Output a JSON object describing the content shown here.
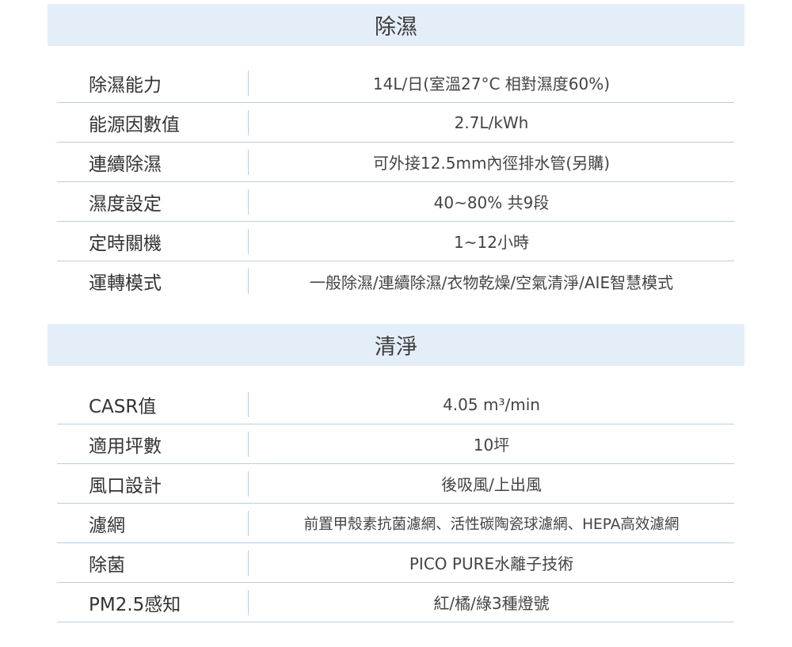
{
  "sections": [
    {
      "title": "除濕",
      "rows": [
        {
          "label": "除濕能力",
          "value": "14L/日(室溫27°C 相對濕度60%)"
        },
        {
          "label": "能源因數值",
          "value": "2.7L/kWh"
        },
        {
          "label": "連續除濕",
          "value": "可外接12.5mm內徑排水管(另購)"
        },
        {
          "label": "濕度設定",
          "value": "40~80% 共9段"
        },
        {
          "label": "定時關機",
          "value": "1~12小時"
        },
        {
          "label": "運轉模式",
          "value": "一般除濕/連續除濕/衣物乾燥/空氣清淨/AIE智慧模式"
        }
      ]
    },
    {
      "title": "清淨",
      "rows": [
        {
          "label": "CASR值",
          "value": "4.05 m³/min"
        },
        {
          "label": "適用坪數",
          "value": "10坪"
        },
        {
          "label": "風口設計",
          "value": "後吸風/上出風"
        },
        {
          "label": "濾網",
          "value": "前置甲殼素抗菌濾網、活性碳陶瓷球濾網、HEPA高效濾網"
        },
        {
          "label": "除菌",
          "value": "PICO PURE水離子技術"
        },
        {
          "label": "PM2.5感知",
          "value": "紅/橘/綠3種燈號"
        }
      ]
    }
  ],
  "colors": {
    "header_bg": "#e4eef8",
    "divider": "#b9cfdf"
  }
}
